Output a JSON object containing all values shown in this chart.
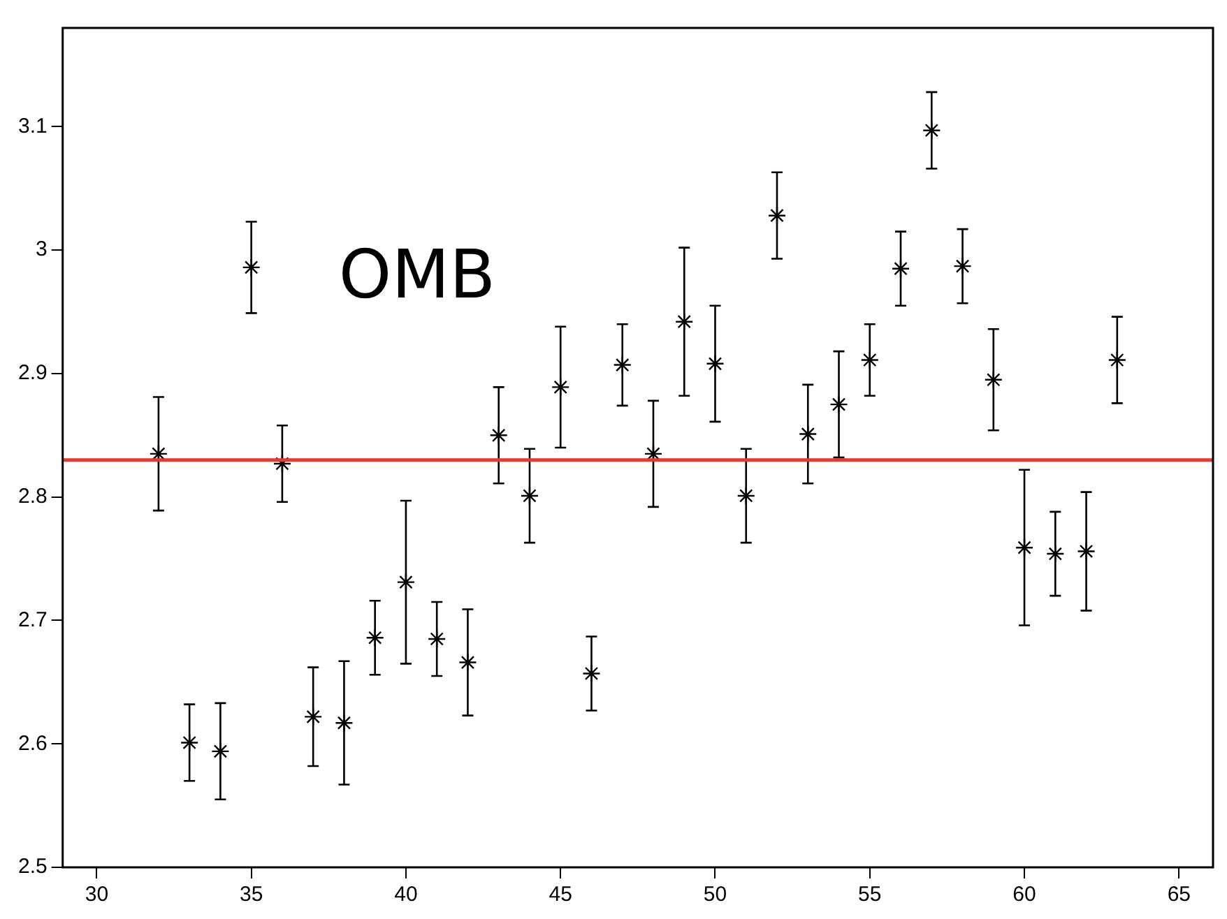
{
  "chart_data": {
    "type": "scatter",
    "x": [
      32,
      33,
      34,
      35,
      36,
      37,
      38,
      39,
      40,
      41,
      42,
      43,
      44,
      45,
      46,
      47,
      48,
      49,
      50,
      51,
      52,
      53,
      54,
      55,
      56,
      57,
      58,
      59,
      60,
      61,
      62,
      63
    ],
    "values": [
      2.835,
      2.601,
      2.594,
      2.986,
      2.827,
      2.622,
      2.617,
      2.686,
      2.731,
      2.685,
      2.666,
      2.85,
      2.801,
      2.889,
      2.657,
      2.907,
      2.835,
      2.942,
      2.908,
      2.801,
      3.028,
      2.851,
      2.875,
      2.911,
      2.985,
      3.097,
      2.987,
      2.895,
      2.759,
      2.754,
      2.756,
      2.911
    ],
    "errors": [
      0.046,
      0.031,
      0.039,
      0.037,
      0.031,
      0.04,
      0.05,
      0.03,
      0.066,
      0.03,
      0.043,
      0.039,
      0.038,
      0.049,
      0.03,
      0.033,
      0.043,
      0.06,
      0.047,
      0.038,
      0.035,
      0.04,
      0.043,
      0.029,
      0.03,
      0.031,
      0.03,
      0.041,
      0.063,
      0.034,
      0.048,
      0.035
    ],
    "color": "#000000",
    "marker": "cross",
    "xlim": [
      28.9,
      66.1
    ],
    "xticks": [
      30,
      35,
      40,
      45,
      50,
      55,
      60,
      65
    ],
    "ylim": [
      2.5,
      3.18
    ],
    "yticks": [
      2.5,
      2.6,
      2.7,
      2.8,
      2.9,
      3,
      3.1
    ],
    "ref_lines": [
      {
        "axis": "y",
        "value": 2.83,
        "color": "#e8392b"
      }
    ],
    "annotations": [
      "OMB"
    ],
    "grid": false,
    "legend": false
  }
}
